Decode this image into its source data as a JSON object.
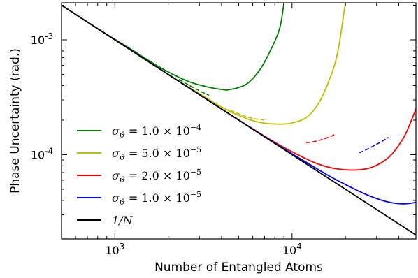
{
  "chart_data": {
    "type": "line",
    "xlabel": "Number of Entangled Atoms",
    "ylabel": "Phase Uncertainty (rad.)",
    "xscale": "log",
    "yscale": "log",
    "xlim": [
      500,
      50000
    ],
    "ylim": [
      1.85e-05,
      0.0021
    ],
    "grid": false,
    "legend_placement": "lower-left",
    "x_ticks": [
      {
        "value": 1000,
        "label": "10",
        "exp": "3"
      },
      {
        "value": 10000,
        "label": "10",
        "exp": "4"
      }
    ],
    "y_ticks": [
      {
        "value": 0.0001,
        "label": "10",
        "exp": "-4"
      },
      {
        "value": 0.001,
        "label": "10",
        "exp": "-3"
      }
    ],
    "series": [
      {
        "name": "σϑ = 1.0 × 10⁻⁴",
        "legend_base": "σ",
        "legend_sub": "ϑ",
        "legend_mid": " = 1.0 × 10",
        "legend_sup": "−4",
        "color": "#008000",
        "sigma": 0.0001,
        "x": [
          500,
          800,
          1200,
          1800,
          2500,
          3200,
          4000,
          4500,
          5500,
          6500,
          7500,
          8500,
          9000
        ],
        "y": [
          0.002,
          0.00125,
          0.00085,
          0.000575,
          0.000445,
          0.000395,
          0.00037,
          0.00037,
          0.00041,
          0.000535,
          0.00079,
          0.00125,
          0.0021
        ]
      },
      {
        "name": "σϑ = 5.0 × 10⁻⁵",
        "legend_base": "σ",
        "legend_sub": "ϑ",
        "legend_mid": " = 5.0 × 10",
        "legend_sup": "−5",
        "color": "#bfbf00",
        "sigma": 5e-05,
        "x": [
          500,
          1000,
          2000,
          3000,
          4000,
          5000,
          6000,
          7000,
          8000,
          9000,
          10000,
          12000,
          14000,
          16000,
          18000,
          20000
        ],
        "y": [
          0.002,
          0.001,
          0.0005,
          0.00034,
          0.00026,
          0.00022,
          0.000198,
          0.000188,
          0.000185,
          0.000185,
          0.000189,
          0.00021,
          0.000275,
          0.000425,
          0.00075,
          0.0021
        ]
      },
      {
        "name": "σϑ = 2.0 × 10⁻⁵",
        "legend_base": "σ",
        "legend_sub": "ϑ",
        "legend_mid": " = 2.0 × 10",
        "legend_sup": "−5",
        "color": "#ff0000",
        "sigma": 2e-05,
        "x": [
          500,
          1000,
          2000,
          4000,
          6000,
          8000,
          10000,
          13000,
          16000,
          19000,
          22000,
          25000,
          28000,
          32000,
          36000,
          40000,
          44000,
          50000
        ],
        "y": [
          0.002,
          0.001,
          0.0005,
          0.00025,
          0.000168,
          0.000128,
          0.000106,
          8.7e-05,
          7.8e-05,
          7.45e-05,
          7.35e-05,
          7.45e-05,
          7.75e-05,
          8.55e-05,
          9.85e-05,
          0.000121,
          0.000155,
          0.00025
        ]
      },
      {
        "name": "σϑ = 1.0 × 10⁻⁵",
        "legend_base": "σ",
        "legend_sub": "ϑ",
        "legend_mid": " = 1.0 × 10",
        "legend_sup": "−5",
        "color": "#0000ff",
        "sigma": 1e-05,
        "x": [
          500,
          1000,
          2000,
          4000,
          8000,
          12000,
          16000,
          20000,
          25000,
          30000,
          35000,
          40000,
          45000,
          50000
        ],
        "y": [
          0.002,
          0.001,
          0.0005,
          0.00025,
          0.000126,
          8.6e-05,
          6.6e-05,
          5.5e-05,
          4.65e-05,
          4.15e-05,
          3.87e-05,
          3.75e-05,
          3.75e-05,
          3.85e-05
        ]
      },
      {
        "name": "1/N",
        "legend_base": "1/N",
        "legend_sub": "",
        "legend_mid": "",
        "legend_sup": "",
        "color": "#000000",
        "x": [
          500,
          50000
        ],
        "y": [
          0.002,
          2e-05
        ]
      }
    ]
  }
}
